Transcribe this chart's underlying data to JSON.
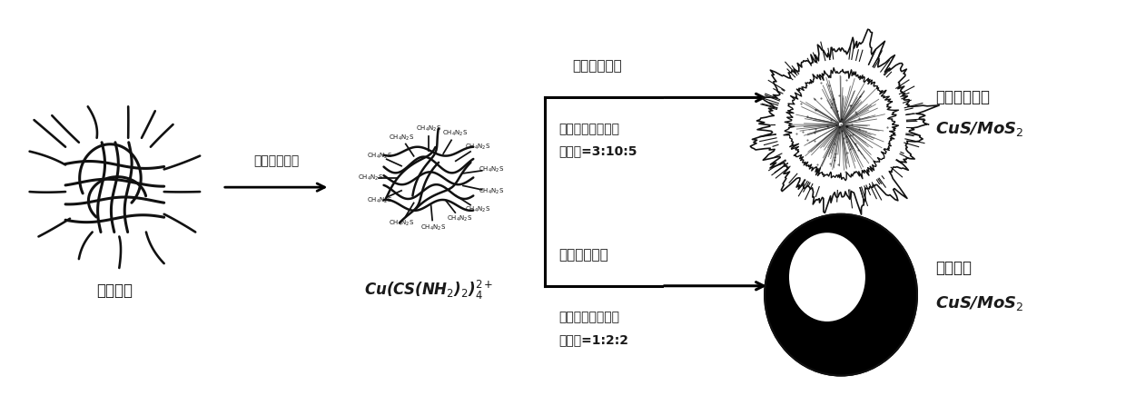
{
  "bg_color": "#ffffff",
  "fig_width": 12.4,
  "fig_height": 4.36,
  "dpi": 100,
  "text_color": "#1a1a1a",
  "label_copper_nanowire": "铜纳米线",
  "label_arrow1": "硫脲乙醇溶液",
  "label_arrow2_top": "钼酸铵水溶液",
  "label_top_line1": "铜纳米线：硫脲：",
  "label_top_line2": "钼酸铵=3:10:5",
  "label_result_top_1": "多层分级球状",
  "label_result_top_2": "CuS/MoS$_2$",
  "label_arrow2_bot": "钼酸铵水溶液",
  "label_bot_line1": "铜纳米线：硫脲：",
  "label_bot_line2": "钼酸铵=1:2:2",
  "label_result_bot_1": "实心球状",
  "label_result_bot_2": "CuS/MoS$_2$"
}
